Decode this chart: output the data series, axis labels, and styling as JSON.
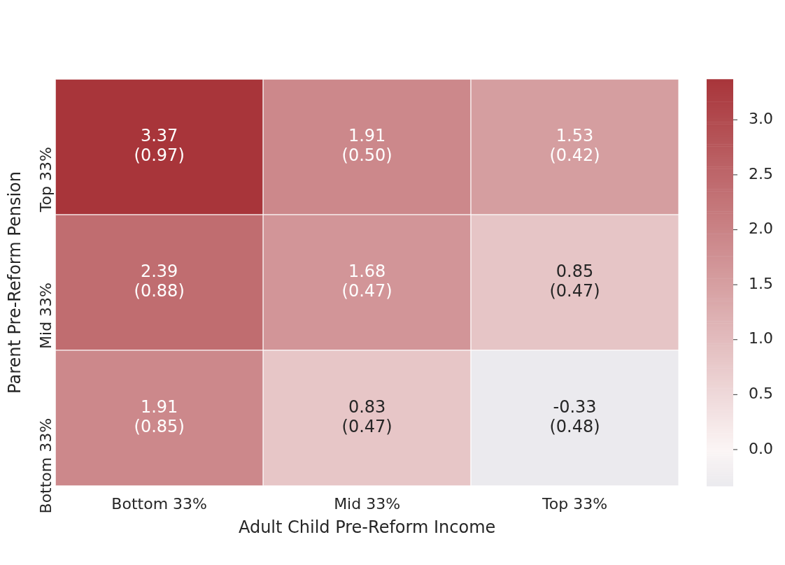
{
  "chart_data": {
    "type": "heatmap",
    "xlabel": "Adult Child Pre-Reform Income",
    "ylabel": "Parent Pre-Reform Pension",
    "categories": [
      "Bottom 33%",
      "Mid 33%",
      "Top 33%"
    ],
    "y_categories": [
      "Top 33%",
      "Mid 33%",
      "Bottom 33%"
    ],
    "cells": [
      [
        3.37,
        1.91,
        1.53
      ],
      [
        2.39,
        1.68,
        0.85
      ],
      [
        1.91,
        0.83,
        -0.33
      ]
    ],
    "cell_labels": [
      [
        "3.37\n(0.97)",
        "1.91\n(0.50)",
        "1.53\n(0.42)"
      ],
      [
        "2.39\n(0.88)",
        "1.68\n(0.47)",
        "0.85\n(0.47)"
      ],
      [
        "1.91\n(0.85)",
        "0.83\n(0.47)",
        "-0.33\n(0.48)"
      ]
    ],
    "colors": [
      "#ebeaee",
      "#fbf5f5",
      "#a8353a"
    ],
    "clim": [
      -0.33,
      3.37
    ],
    "cticks": [
      {
        "value": 0,
        "label": "0.0"
      },
      0.5,
      {
        "value": 1,
        "label": "1.0"
      },
      1.5,
      {
        "value": 2,
        "label": "2.0"
      },
      2.5,
      {
        "value": 3,
        "label": "3.0"
      }
    ]
  }
}
